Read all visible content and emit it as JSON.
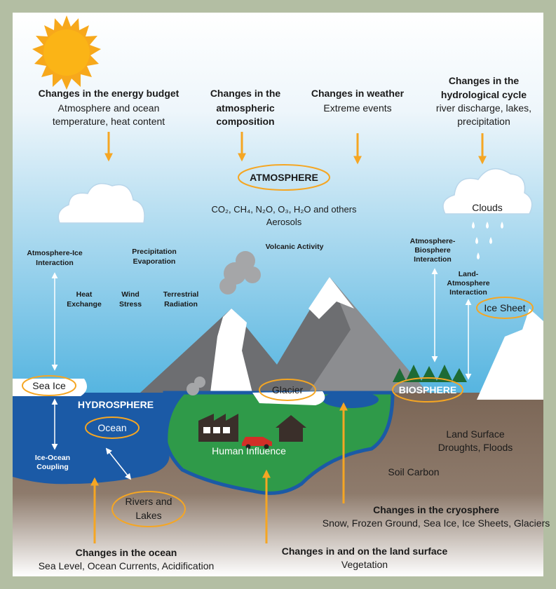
{
  "forcings": {
    "energy": {
      "title": "Changes in the energy budget",
      "detail": [
        "Atmosphere and ocean",
        "temperature, heat content"
      ]
    },
    "composition": {
      "title": [
        "Changes in the",
        "atmospheric",
        "composition"
      ]
    },
    "weather": {
      "title": "Changes in weather",
      "detail": "Extreme events"
    },
    "hydrological": {
      "title": [
        "Changes in the",
        "hydrological cycle"
      ],
      "detail": [
        "river discharge, lakes,",
        "precipitation"
      ]
    },
    "cryosphere": {
      "title": "Changes in the cryosphere",
      "detail": "Snow, Frozen Ground, Sea Ice, Ice Sheets, Glaciers"
    },
    "ocean": {
      "title": "Changes in the ocean",
      "detail": "Sea Level, Ocean Currents, Acidification"
    },
    "land": {
      "title": "Changes in and on the land surface",
      "detail": "Vegetation"
    }
  },
  "atmosphere_detail": [
    "CO₂, CH₄, N₂O, O₃, H₂O and others",
    "Aerosols"
  ],
  "clouds": "Clouds",
  "processes": {
    "atmosphere_ice": [
      "Atmosphere-Ice",
      "Interaction"
    ],
    "precipitation": [
      "Precipitation",
      "Evaporation"
    ],
    "volcanic": "Volcanic Activity",
    "heat_exchange": [
      "Heat",
      "Exchange"
    ],
    "wind_stress": [
      "Wind",
      "Stress"
    ],
    "terrestrial_radiation": [
      "Terrestrial",
      "Radiation"
    ],
    "atmosphere_biosphere": [
      "Atmosphere-",
      "Biosphere",
      "Interaction"
    ],
    "land_atmosphere": [
      "Land-",
      "Atmosphere",
      "Interaction"
    ],
    "ice_ocean": [
      "Ice-Ocean",
      "Coupling"
    ]
  },
  "components": {
    "atmosphere": "ATMOSPHERE",
    "ice_sheet": "Ice Sheet",
    "sea_ice": "Sea Ice",
    "glacier": "Glacier",
    "biosphere": "BIOSPHERE",
    "hydrosphere": "HYDROSPHERE",
    "ocean": "Ocean",
    "human_influence": "Human Influence",
    "rivers_lakes": [
      "Rivers and",
      "Lakes"
    ]
  },
  "land_surface": [
    "Land Surface",
    "Droughts, Floods"
  ],
  "soil_carbon": "Soil Carbon"
}
